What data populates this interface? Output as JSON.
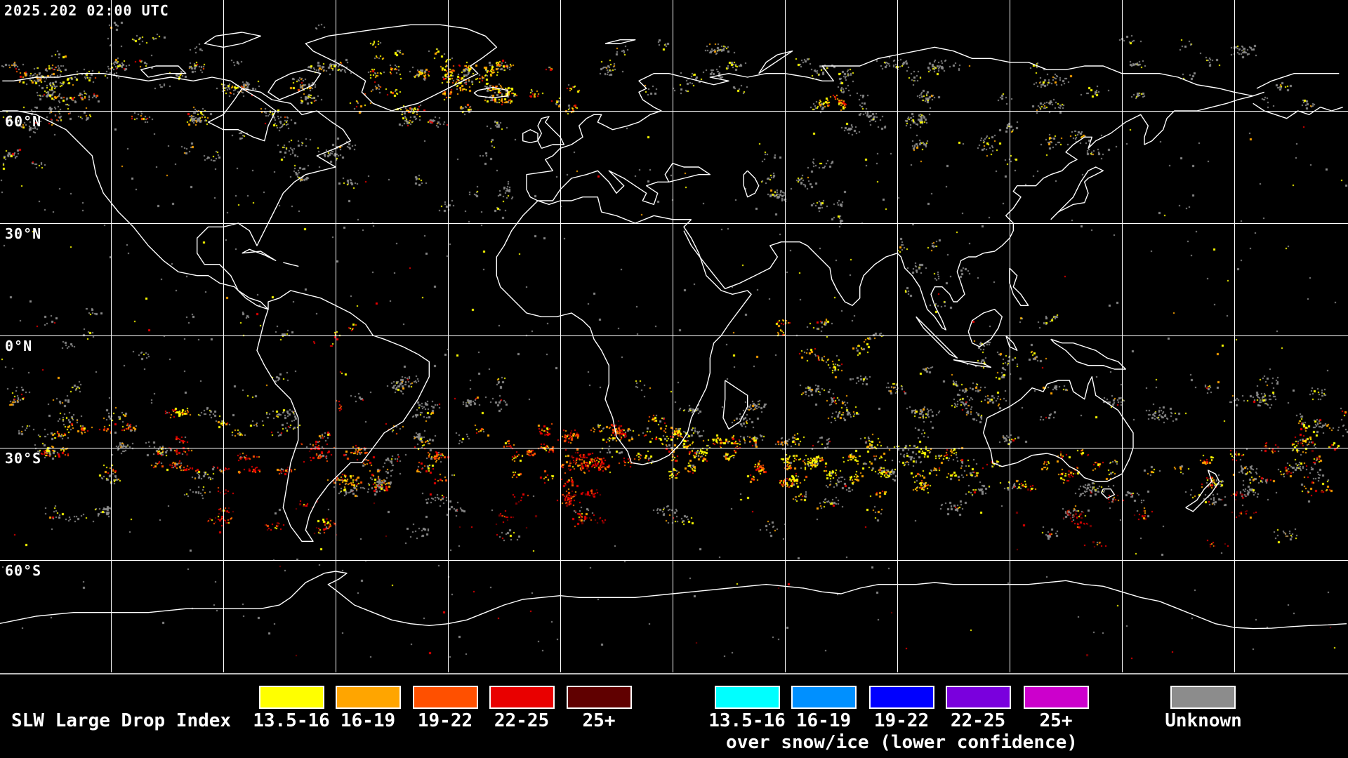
{
  "header": {
    "timestamp": "2025.202 02:00 UTC"
  },
  "map": {
    "lat_labels": [
      "60°N",
      "30°N",
      "0°N",
      "30°S",
      "60°S"
    ]
  },
  "legend": {
    "title": "SLW Large Drop Index",
    "bins": [
      "13.5-16",
      "16-19",
      "19-22",
      "22-25",
      "25+"
    ],
    "bin_colors": [
      "#ffff00",
      "#ffa500",
      "#ff5000",
      "#e90000",
      "#600000"
    ],
    "snow_bins": [
      "13.5-16",
      "16-19",
      "19-22",
      "22-25",
      "25+"
    ],
    "snow_bin_colors": [
      "#00ffff",
      "#0090ff",
      "#0000ff",
      "#7a00dd",
      "#cc00cc"
    ],
    "snow_caption": "over snow/ice (lower confidence)",
    "unknown_label": "Unknown",
    "unknown_color": "#8c8c8c"
  }
}
